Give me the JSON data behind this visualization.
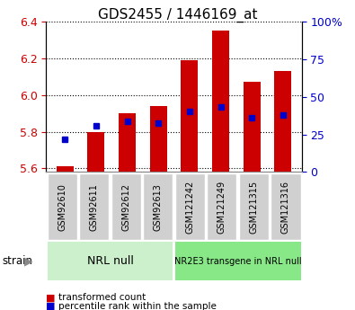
{
  "title": "GDS2455 / 1446169_at",
  "samples": [
    "GSM92610",
    "GSM92611",
    "GSM92612",
    "GSM92613",
    "GSM121242",
    "GSM121249",
    "GSM121315",
    "GSM121316"
  ],
  "red_values": [
    5.61,
    5.8,
    5.9,
    5.94,
    6.19,
    6.35,
    6.07,
    6.13
  ],
  "blue_values_y": [
    5.76,
    5.83,
    5.855,
    5.845,
    5.91,
    5.935,
    5.875,
    5.893
  ],
  "y_min": 5.58,
  "y_max": 6.4,
  "y_ticks": [
    5.6,
    5.8,
    6.0,
    6.2,
    6.4
  ],
  "y2_ticks": [
    0,
    25,
    50,
    75,
    100
  ],
  "group1_label": "NRL null",
  "group2_label": "NR2E3 transgene in NRL null",
  "bar_color": "#cc0000",
  "dot_color": "#0000cc",
  "group1_bg": "#ccf0cc",
  "group2_bg": "#88e888",
  "tick_bg": "#d0d0d0",
  "legend_red": "transformed count",
  "legend_blue": "percentile rank within the sample"
}
